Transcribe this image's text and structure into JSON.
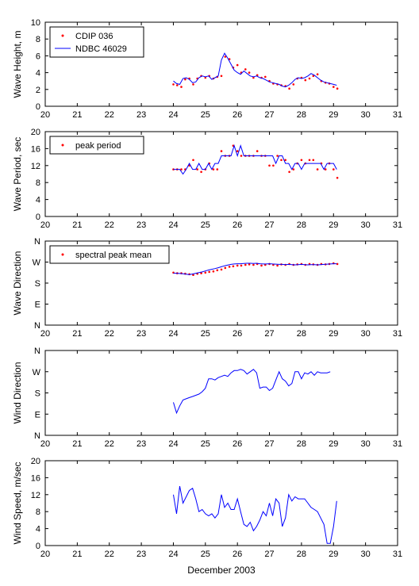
{
  "chart_data": [
    {
      "type": "line",
      "ylabel": "Wave Height, m",
      "ylim": [
        0,
        10
      ],
      "yticks": [
        "0",
        "2",
        "4",
        "6",
        "8",
        "10"
      ],
      "xlim": [
        20,
        31
      ],
      "xticks": [
        "20",
        "21",
        "22",
        "23",
        "24",
        "25",
        "26",
        "27",
        "28",
        "29",
        "30",
        "31"
      ],
      "grid": false,
      "legend": "top-left",
      "series": [
        {
          "name": "CDIP 036",
          "style": "points",
          "color": "#ff0000",
          "x": [
            24.0,
            24.12,
            24.25,
            24.37,
            24.5,
            24.62,
            24.75,
            24.87,
            25.0,
            25.12,
            25.25,
            25.37,
            25.5,
            25.62,
            25.75,
            25.87,
            26.0,
            26.12,
            26.25,
            26.37,
            26.5,
            26.62,
            26.75,
            26.87,
            27.0,
            27.12,
            27.25,
            27.37,
            27.5,
            27.62,
            27.75,
            27.87,
            28.0,
            28.12,
            28.25,
            28.37,
            28.5,
            28.62,
            28.75,
            28.87,
            29.0,
            29.12
          ],
          "y": [
            2.6,
            2.5,
            2.3,
            3.2,
            3.3,
            2.6,
            3.3,
            3.6,
            3.4,
            3.6,
            3.3,
            3.5,
            3.6,
            5.9,
            5.6,
            4.6,
            4.9,
            4.0,
            4.4,
            4.0,
            3.4,
            3.7,
            3.4,
            3.5,
            3.0,
            2.7,
            2.6,
            2.5,
            2.4,
            2.1,
            2.6,
            3.3,
            3.4,
            3.1,
            3.3,
            3.6,
            3.8,
            3.0,
            2.8,
            2.7,
            2.3,
            2.1
          ]
        },
        {
          "name": "NDBC 46029",
          "style": "line",
          "color": "#0000ff",
          "x": [
            24.0,
            24.1,
            24.2,
            24.3,
            24.4,
            24.5,
            24.6,
            24.7,
            24.8,
            24.9,
            25.0,
            25.1,
            25.2,
            25.3,
            25.4,
            25.5,
            25.6,
            25.7,
            25.8,
            25.9,
            26.0,
            26.1,
            26.2,
            26.3,
            26.4,
            26.5,
            26.6,
            26.7,
            26.8,
            26.9,
            27.0,
            27.1,
            27.2,
            27.3,
            27.4,
            27.5,
            27.6,
            27.7,
            27.8,
            27.9,
            28.0,
            28.1,
            28.2,
            28.3,
            28.4,
            28.5,
            28.6,
            28.7,
            28.8,
            28.9,
            29.0,
            29.1
          ],
          "y": [
            3.0,
            2.7,
            2.6,
            3.3,
            3.4,
            3.2,
            2.8,
            2.9,
            3.4,
            3.6,
            3.5,
            3.6,
            3.2,
            3.4,
            3.6,
            5.5,
            6.3,
            5.7,
            5.0,
            4.3,
            4.0,
            3.8,
            4.2,
            3.9,
            3.6,
            3.5,
            3.6,
            3.4,
            3.3,
            3.1,
            2.9,
            2.8,
            2.7,
            2.6,
            2.4,
            2.3,
            2.5,
            2.8,
            3.2,
            3.4,
            3.3,
            3.4,
            3.6,
            3.9,
            3.7,
            3.4,
            3.1,
            2.9,
            2.8,
            2.7,
            2.6,
            2.5
          ]
        }
      ]
    },
    {
      "type": "line",
      "ylabel": "Wave Period, sec",
      "ylim": [
        0,
        20
      ],
      "yticks": [
        "0",
        "4",
        "8",
        "12",
        "16",
        "20"
      ],
      "xlim": [
        20,
        31
      ],
      "xticks": [
        "20",
        "21",
        "22",
        "23",
        "24",
        "25",
        "26",
        "27",
        "28",
        "29",
        "30",
        "31"
      ],
      "grid": false,
      "legend": "top-left",
      "series": [
        {
          "name": "peak period",
          "style": "points",
          "color": "#ff0000",
          "x": [
            24.0,
            24.12,
            24.25,
            24.37,
            24.5,
            24.62,
            24.75,
            24.87,
            25.0,
            25.12,
            25.25,
            25.37,
            25.5,
            25.62,
            25.75,
            25.87,
            26.0,
            26.12,
            26.25,
            26.37,
            26.5,
            26.62,
            26.75,
            26.87,
            27.0,
            27.12,
            27.25,
            27.37,
            27.5,
            27.62,
            27.75,
            27.87,
            28.0,
            28.12,
            28.25,
            28.37,
            28.5,
            28.62,
            28.75,
            28.87,
            29.0,
            29.12
          ],
          "y": [
            11.1,
            11.1,
            11.1,
            11.1,
            12.0,
            13.3,
            11.1,
            10.5,
            11.1,
            12.5,
            11.1,
            11.1,
            15.4,
            14.3,
            14.3,
            16.7,
            15.4,
            14.3,
            14.3,
            14.3,
            14.3,
            15.4,
            14.3,
            14.3,
            12.0,
            12.0,
            14.3,
            13.3,
            13.3,
            10.5,
            11.1,
            12.5,
            13.3,
            12.5,
            13.3,
            13.3,
            11.1,
            12.5,
            11.1,
            12.5,
            11.1,
            9.1
          ]
        },
        {
          "name": "",
          "style": "line",
          "color": "#0000ff",
          "x": [
            24.0,
            24.1,
            24.2,
            24.3,
            24.4,
            24.5,
            24.6,
            24.7,
            24.8,
            24.9,
            25.0,
            25.1,
            25.2,
            25.3,
            25.4,
            25.5,
            25.6,
            25.7,
            25.8,
            25.9,
            26.0,
            26.1,
            26.2,
            26.3,
            26.4,
            26.5,
            26.6,
            26.7,
            26.8,
            26.9,
            27.0,
            27.1,
            27.2,
            27.3,
            27.4,
            27.5,
            27.6,
            27.7,
            27.8,
            27.9,
            28.0,
            28.1,
            28.2,
            28.3,
            28.4,
            28.5,
            28.6,
            28.7,
            28.8,
            28.9,
            29.0,
            29.1
          ],
          "y": [
            11.1,
            11.1,
            11.1,
            10.0,
            11.1,
            12.5,
            11.1,
            11.1,
            12.5,
            11.1,
            11.1,
            12.5,
            11.1,
            12.5,
            12.5,
            14.3,
            14.3,
            14.3,
            14.3,
            16.7,
            14.3,
            16.7,
            14.3,
            14.3,
            14.3,
            14.3,
            14.3,
            14.3,
            14.3,
            14.3,
            14.3,
            14.3,
            12.5,
            14.3,
            14.3,
            12.5,
            12.5,
            11.1,
            12.5,
            12.5,
            11.1,
            12.5,
            12.5,
            12.5,
            12.5,
            12.5,
            12.5,
            11.1,
            12.5,
            12.5,
            12.5,
            11.1
          ]
        }
      ]
    },
    {
      "type": "line",
      "ylabel": "Wave Direction",
      "ylim": [
        0,
        360
      ],
      "yticks": [
        "N",
        "E",
        "S",
        "W",
        "N"
      ],
      "xlim": [
        20,
        31
      ],
      "xticks": [
        "20",
        "21",
        "22",
        "23",
        "24",
        "25",
        "26",
        "27",
        "28",
        "29",
        "30",
        "31"
      ],
      "grid": false,
      "legend": "top-left",
      "series": [
        {
          "name": "spectral peak mean",
          "style": "points",
          "color": "#ff0000",
          "x": [
            24.0,
            24.12,
            24.25,
            24.37,
            24.5,
            24.62,
            24.75,
            24.87,
            25.0,
            25.12,
            25.25,
            25.37,
            25.5,
            25.62,
            25.75,
            25.87,
            26.0,
            26.12,
            26.25,
            26.37,
            26.5,
            26.62,
            26.75,
            26.87,
            27.0,
            27.12,
            27.25,
            27.37,
            27.5,
            27.62,
            27.75,
            27.87,
            28.0,
            28.12,
            28.25,
            28.37,
            28.5,
            28.62,
            28.75,
            28.87,
            29.0,
            29.12
          ],
          "y": [
            225,
            222,
            222,
            220,
            218,
            215,
            220,
            222,
            225,
            228,
            230,
            235,
            238,
            245,
            250,
            252,
            255,
            255,
            258,
            260,
            258,
            262,
            255,
            258,
            262,
            258,
            255,
            260,
            258,
            262,
            258,
            260,
            262,
            258,
            262,
            260,
            258,
            262,
            260,
            262,
            265,
            262
          ]
        },
        {
          "name": "",
          "style": "line",
          "color": "#0000ff",
          "x": [
            24.0,
            24.1,
            24.2,
            24.3,
            24.4,
            24.5,
            24.6,
            24.7,
            24.8,
            24.9,
            25.0,
            25.1,
            25.2,
            25.3,
            25.4,
            25.5,
            25.6,
            25.7,
            25.8,
            25.9,
            26.0,
            26.1,
            26.2,
            26.3,
            26.4,
            26.5,
            26.6,
            26.7,
            26.8,
            26.9,
            27.0,
            27.1,
            27.2,
            27.3,
            27.4,
            27.5,
            27.6,
            27.7,
            27.8,
            27.9,
            28.0,
            28.1,
            28.2,
            28.3,
            28.4,
            28.5,
            28.6,
            28.7,
            28.8,
            28.9,
            29.0,
            29.1
          ],
          "y": [
            222,
            222,
            221,
            220,
            218,
            216,
            219,
            222,
            225,
            228,
            232,
            236,
            239,
            242,
            246,
            250,
            254,
            257,
            260,
            262,
            263,
            263,
            264,
            265,
            265,
            264,
            265,
            263,
            262,
            262,
            263,
            262,
            261,
            260,
            260,
            259,
            260,
            259,
            258,
            259,
            260,
            259,
            258,
            259,
            259,
            258,
            259,
            260,
            261,
            262,
            263,
            263
          ]
        }
      ]
    },
    {
      "type": "line",
      "ylabel": "Wind Direction",
      "ylim": [
        0,
        360
      ],
      "yticks": [
        "N",
        "E",
        "S",
        "W",
        "N"
      ],
      "xlim": [
        20,
        31
      ],
      "xticks": [
        "20",
        "21",
        "22",
        "23",
        "24",
        "25",
        "26",
        "27",
        "28",
        "29",
        "30",
        "31"
      ],
      "grid": false,
      "legend": "none",
      "series": [
        {
          "name": "",
          "style": "line",
          "color": "#0000ff",
          "x": [
            24.0,
            24.1,
            24.2,
            24.3,
            24.4,
            24.5,
            24.6,
            24.7,
            24.8,
            24.9,
            25.0,
            25.1,
            25.2,
            25.3,
            25.4,
            25.5,
            25.6,
            25.7,
            25.8,
            25.9,
            26.0,
            26.1,
            26.2,
            26.3,
            26.4,
            26.5,
            26.6,
            26.7,
            26.8,
            26.9,
            27.0,
            27.1,
            27.2,
            27.3,
            27.4,
            27.5,
            27.6,
            27.7,
            27.8,
            27.9,
            28.0,
            28.1,
            28.2,
            28.3,
            28.4,
            28.5,
            28.6,
            28.7,
            28.8,
            28.9
          ],
          "y": [
            140,
            95,
            125,
            150,
            155,
            160,
            165,
            170,
            175,
            185,
            200,
            240,
            240,
            235,
            245,
            250,
            255,
            250,
            265,
            275,
            275,
            280,
            275,
            260,
            270,
            280,
            265,
            200,
            205,
            205,
            190,
            200,
            235,
            270,
            240,
            230,
            210,
            220,
            270,
            270,
            240,
            265,
            260,
            270,
            255,
            270,
            265,
            265,
            265,
            270
          ]
        }
      ]
    },
    {
      "type": "line",
      "ylabel": "Wind Speed, m/sec",
      "ylim": [
        0,
        20
      ],
      "yticks": [
        "0",
        "4",
        "8",
        "12",
        "16",
        "20"
      ],
      "xlim": [
        20,
        31
      ],
      "xticks": [
        "20",
        "21",
        "22",
        "23",
        "24",
        "25",
        "26",
        "27",
        "28",
        "29",
        "30",
        "31"
      ],
      "xlabel": "December 2003",
      "grid": false,
      "legend": "none",
      "series": [
        {
          "name": "",
          "style": "line",
          "color": "#0000ff",
          "x": [
            24.0,
            24.1,
            24.2,
            24.3,
            24.4,
            24.5,
            24.6,
            24.7,
            24.8,
            24.9,
            25.0,
            25.1,
            25.2,
            25.3,
            25.4,
            25.5,
            25.6,
            25.7,
            25.8,
            25.9,
            26.0,
            26.1,
            26.2,
            26.3,
            26.4,
            26.5,
            26.6,
            26.7,
            26.8,
            26.9,
            27.0,
            27.1,
            27.2,
            27.3,
            27.4,
            27.5,
            27.6,
            27.7,
            27.8,
            27.9,
            28.0,
            28.1,
            28.2,
            28.3,
            28.4,
            28.5,
            28.6,
            28.7,
            28.8,
            28.9,
            29.0,
            29.1
          ],
          "y": [
            12.0,
            7.5,
            14.0,
            10.0,
            11.5,
            13.0,
            13.5,
            11.0,
            8.0,
            8.5,
            7.5,
            7.0,
            7.5,
            6.5,
            7.5,
            12.0,
            9.0,
            10.0,
            8.5,
            8.5,
            11.0,
            8.0,
            5.0,
            4.5,
            5.5,
            3.5,
            4.5,
            6.0,
            8.0,
            7.0,
            10.0,
            7.0,
            11.0,
            10.0,
            4.5,
            6.5,
            12.0,
            10.5,
            11.5,
            11.0,
            11.0,
            11.0,
            10.0,
            9.0,
            8.5,
            8.0,
            6.5,
            5.0,
            0.5,
            0.5,
            4.5,
            10.5
          ]
        }
      ]
    }
  ]
}
